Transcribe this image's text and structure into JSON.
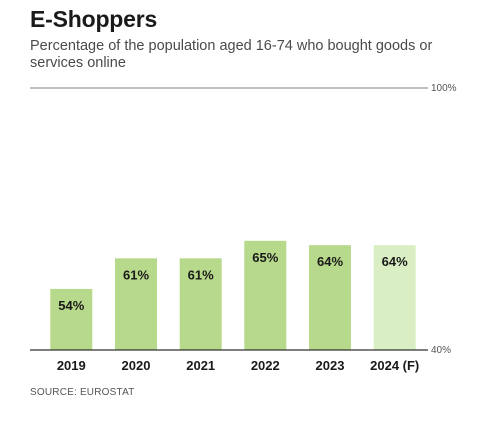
{
  "chart_data": {
    "type": "bar",
    "title": "E-Shoppers",
    "subtitle": "Percentage of the population aged 16-74 who bought goods or services online",
    "categories": [
      "2019",
      "2020",
      "2021",
      "2022",
      "2023",
      "2024 (F)"
    ],
    "values": [
      54,
      61,
      61,
      65,
      64,
      64
    ],
    "data_labels": [
      "54%",
      "61%",
      "61%",
      "65%",
      "64%",
      "64%"
    ],
    "forecast": [
      false,
      false,
      false,
      false,
      false,
      true
    ],
    "ylim": [
      40,
      100
    ],
    "y_axis_labels": {
      "max": "100%",
      "min": "40%"
    },
    "grid": false,
    "colors": {
      "bar": "#b7d98b",
      "forecast_bar": "#daeec3",
      "axis": "#333333"
    }
  },
  "source": "SOURCE: EUROSTAT"
}
